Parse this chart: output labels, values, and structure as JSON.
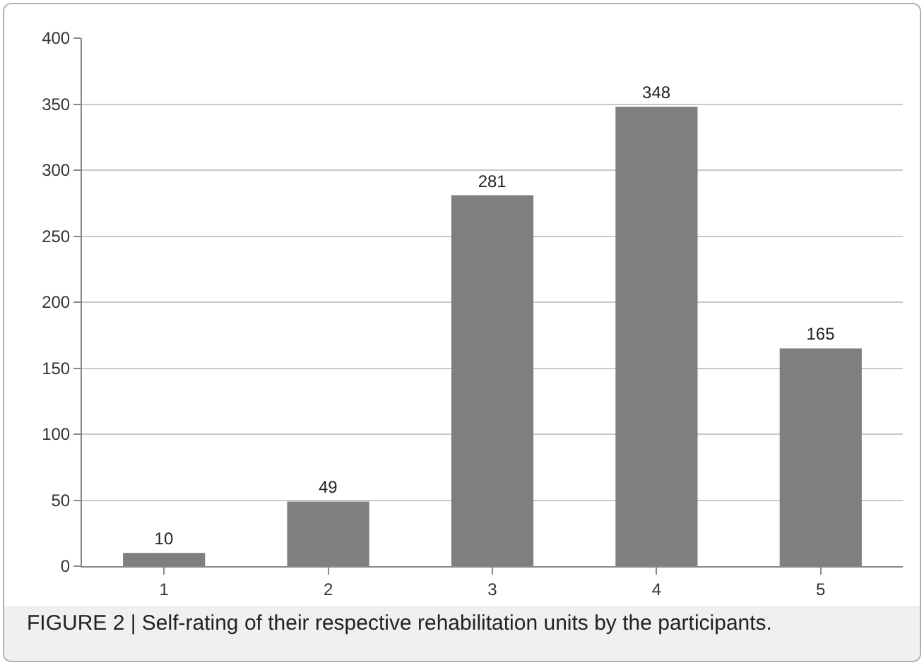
{
  "chart_data": {
    "type": "bar",
    "categories": [
      "1",
      "2",
      "3",
      "4",
      "5"
    ],
    "values": [
      10,
      49,
      281,
      348,
      165
    ],
    "color": "#7f7f7f",
    "ylim": [
      0,
      400
    ],
    "yticks": [
      0,
      50,
      100,
      150,
      200,
      250,
      300,
      350,
      400
    ],
    "grid": "y",
    "data_labels": true,
    "legend": false,
    "annotations": [
      "FIGURE 2 | Self-rating of their respective rehabilitation units by the participants."
    ]
  }
}
